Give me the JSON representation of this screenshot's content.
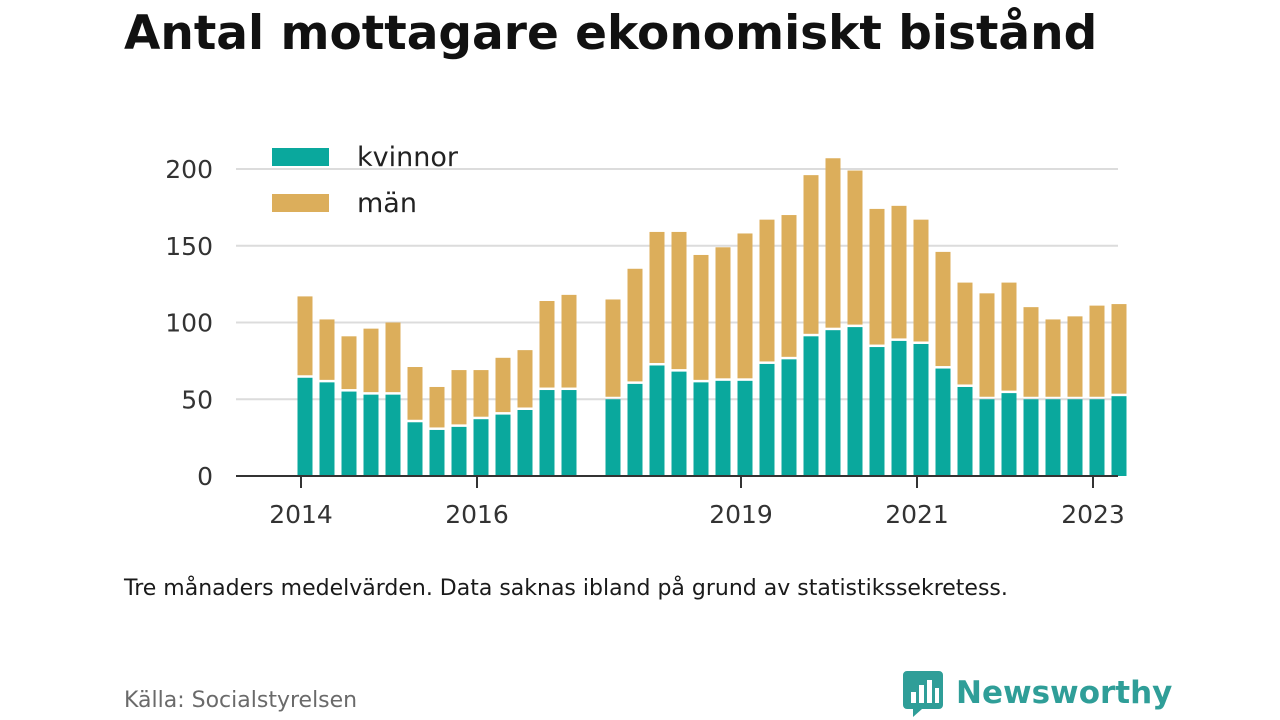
{
  "title": "Antal mottagare ekonomiskt bistånd",
  "subtitle": "Tre månaders medelvärden. Data saknas ibland på grund av statistikssekretess.",
  "source": "Källa: Socialstyrelsen",
  "brand": {
    "name": "Newsworthy",
    "icon": "newsworthy-logo-icon",
    "color": "#2f9e98"
  },
  "chart_data": {
    "type": "bar",
    "stacked": true,
    "x_start_year": 2014,
    "x_unit": "quarter",
    "categories": [
      "2014 Q2",
      "2014 Q3",
      "2014 Q4",
      "2015 Q1",
      "2015 Q2",
      "2015 Q3",
      "2015 Q4",
      "2016 Q1",
      "2016 Q2",
      "2016 Q3",
      "2016 Q4",
      "2017 Q1",
      "2017 Q2",
      "2017 Q3",
      "2017 Q4",
      "2018 Q1",
      "2018 Q2",
      "2018 Q3",
      "2018 Q4",
      "2019 Q1",
      "2019 Q2",
      "2019 Q3",
      "2019 Q4",
      "2020 Q1",
      "2020 Q2",
      "2020 Q3",
      "2020 Q4",
      "2021 Q1",
      "2021 Q2",
      "2021 Q3",
      "2021 Q4",
      "2022 Q1",
      "2022 Q2",
      "2022 Q3",
      "2022 Q4",
      "2023 Q1",
      "2023 Q2",
      "2023 Q3"
    ],
    "series": [
      {
        "name": "kvinnor",
        "color": "#0aa89d",
        "values": [
          64,
          61,
          55,
          53,
          53,
          35,
          30,
          32,
          37,
          40,
          43,
          56,
          56,
          null,
          50,
          60,
          72,
          68,
          61,
          62,
          62,
          73,
          76,
          91,
          95,
          97,
          84,
          88,
          86,
          70,
          58,
          50,
          54,
          50,
          50,
          50,
          50,
          52
        ]
      },
      {
        "name": "män",
        "color": "#dcae5b",
        "values": [
          53,
          41,
          36,
          43,
          47,
          36,
          28,
          37,
          32,
          37,
          39,
          58,
          62,
          null,
          65,
          75,
          87,
          91,
          83,
          87,
          96,
          94,
          94,
          105,
          112,
          102,
          90,
          88,
          81,
          76,
          68,
          69,
          72,
          60,
          52,
          54,
          61,
          60
        ]
      }
    ],
    "ylim": [
      0,
      210
    ],
    "yticks": [
      "0",
      "50",
      "100",
      "150",
      "200"
    ],
    "xticks": [
      "2014",
      "2016",
      "2019",
      "2021",
      "2023"
    ],
    "xlabel": "",
    "ylabel": "",
    "grid": true,
    "legend": "top-left"
  }
}
